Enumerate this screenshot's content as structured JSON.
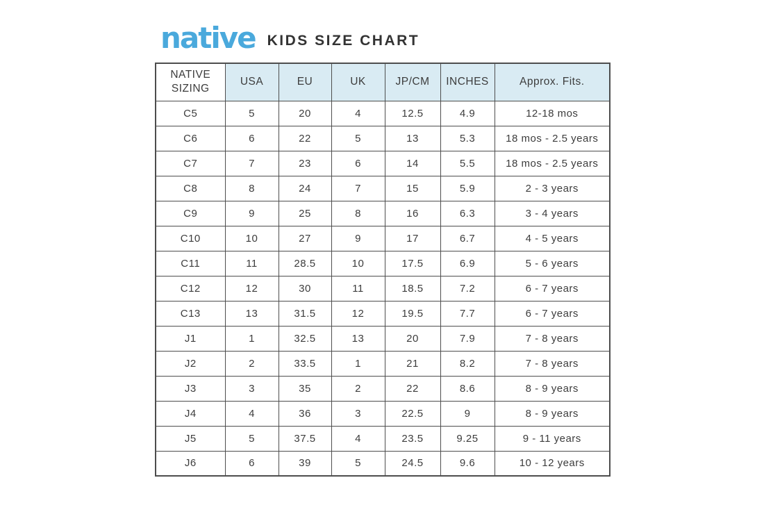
{
  "brand": {
    "logo_text": "native",
    "title": "KIDS SIZE CHART"
  },
  "colors": {
    "brand_blue": "#4AA9DC",
    "header_background": "#D9EBF3",
    "grid_border": "#4D4D4D",
    "text": "#3C3C3C"
  },
  "chart_data": {
    "type": "table",
    "title": "native KIDS SIZE CHART",
    "columns": [
      "NATIVE SIZING",
      "USA",
      "EU",
      "UK",
      "JP/CM",
      "INCHES",
      "Approx. Fits."
    ],
    "rows": [
      [
        "C5",
        "5",
        "20",
        "4",
        "12.5",
        "4.9",
        "12-18 mos"
      ],
      [
        "C6",
        "6",
        "22",
        "5",
        "13",
        "5.3",
        "18 mos - 2.5 years"
      ],
      [
        "C7",
        "7",
        "23",
        "6",
        "14",
        "5.5",
        "18 mos - 2.5 years"
      ],
      [
        "C8",
        "8",
        "24",
        "7",
        "15",
        "5.9",
        "2 - 3 years"
      ],
      [
        "C9",
        "9",
        "25",
        "8",
        "16",
        "6.3",
        "3 - 4 years"
      ],
      [
        "C10",
        "10",
        "27",
        "9",
        "17",
        "6.7",
        "4 - 5 years"
      ],
      [
        "C11",
        "11",
        "28.5",
        "10",
        "17.5",
        "6.9",
        "5 - 6 years"
      ],
      [
        "C12",
        "12",
        "30",
        "11",
        "18.5",
        "7.2",
        "6 - 7 years"
      ],
      [
        "C13",
        "13",
        "31.5",
        "12",
        "19.5",
        "7.7",
        "6 - 7 years"
      ],
      [
        "J1",
        "1",
        "32.5",
        "13",
        "20",
        "7.9",
        "7 - 8 years"
      ],
      [
        "J2",
        "2",
        "33.5",
        "1",
        "21",
        "8.2",
        "7 - 8 years"
      ],
      [
        "J3",
        "3",
        "35",
        "2",
        "22",
        "8.6",
        "8 - 9 years"
      ],
      [
        "J4",
        "4",
        "36",
        "3",
        "22.5",
        "9",
        "8 - 9 years"
      ],
      [
        "J5",
        "5",
        "37.5",
        "4",
        "23.5",
        "9.25",
        "9 - 11 years"
      ],
      [
        "J6",
        "6",
        "39",
        "5",
        "24.5",
        "9.6",
        "10 - 12 years"
      ]
    ],
    "layout": {
      "header_fill": "#D9EBF3",
      "first_header_cell_fill": "#FFFFFF",
      "grid": true
    }
  }
}
